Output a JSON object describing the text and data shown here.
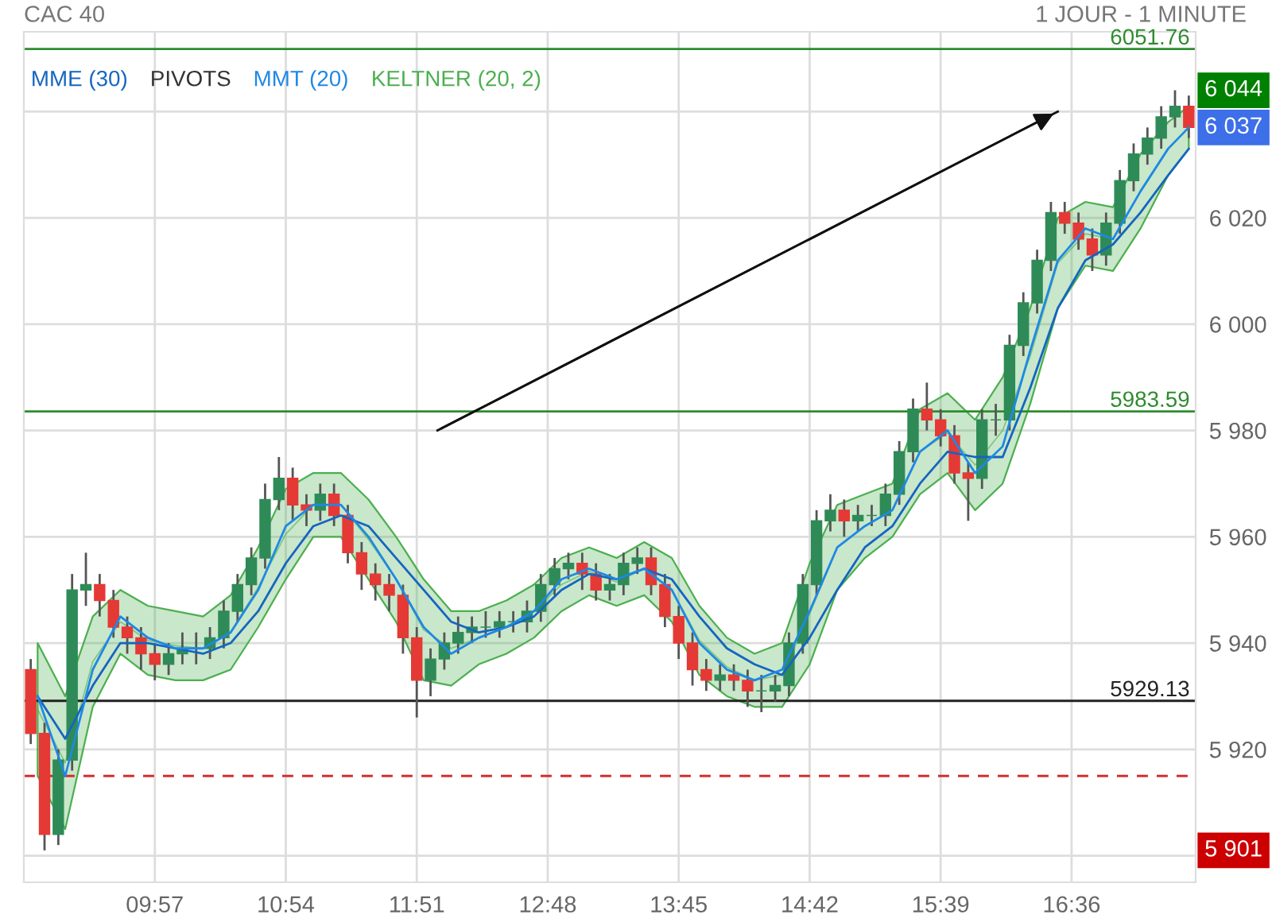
{
  "chart_data": {
    "type": "candlestick",
    "title": "CAC 40",
    "subtitle": "1 JOUR - 1 MINUTE",
    "x": [
      9.05,
      9.15,
      9.25,
      9.35,
      9.45,
      9.55,
      9.65,
      9.75,
      9.85,
      9.95,
      10.05,
      10.15,
      10.25,
      10.35,
      10.45,
      10.55,
      10.65,
      10.75,
      10.85,
      10.95,
      11.05,
      11.15,
      11.25,
      11.35,
      11.45,
      11.55,
      11.65,
      11.75,
      11.85,
      11.95,
      12.05,
      12.15,
      12.25,
      12.35,
      12.45,
      12.55,
      12.65,
      12.75,
      12.85,
      12.95,
      13.05,
      13.15,
      13.25,
      13.35,
      13.45,
      13.55,
      13.65,
      13.75,
      13.85,
      13.95,
      14.05,
      14.15,
      14.25,
      14.35,
      14.45,
      14.55,
      14.65,
      14.75,
      14.85,
      14.95,
      15.05,
      15.15,
      15.25,
      15.35,
      15.45,
      15.55,
      15.65,
      15.75,
      15.85,
      15.95,
      16.05,
      16.15,
      16.25,
      16.35,
      16.45,
      16.55,
      16.65,
      16.75,
      16.85,
      16.95,
      17.05,
      17.15,
      17.25,
      17.35,
      17.45
    ],
    "ohlc": [
      [
        5935,
        5937,
        5921,
        5923
      ],
      [
        5923,
        5925,
        5901,
        5904
      ],
      [
        5904,
        5920,
        5902,
        5918
      ],
      [
        5918,
        5953,
        5916,
        5950
      ],
      [
        5950,
        5957,
        5947,
        5951
      ],
      [
        5951,
        5953,
        5945,
        5948
      ],
      [
        5948,
        5950,
        5941,
        5943
      ],
      [
        5943,
        5945,
        5938,
        5941
      ],
      [
        5941,
        5943,
        5935,
        5938
      ],
      [
        5938,
        5940,
        5933,
        5936
      ],
      [
        5936,
        5940,
        5934,
        5938
      ],
      [
        5938,
        5942,
        5936,
        5939
      ],
      [
        5939,
        5942,
        5936,
        5939
      ],
      [
        5939,
        5943,
        5937,
        5941
      ],
      [
        5941,
        5948,
        5939,
        5946
      ],
      [
        5946,
        5953,
        5944,
        5951
      ],
      [
        5951,
        5958,
        5949,
        5956
      ],
      [
        5956,
        5970,
        5954,
        5967
      ],
      [
        5967,
        5975,
        5965,
        5971
      ],
      [
        5971,
        5973,
        5963,
        5966
      ],
      [
        5966,
        5968,
        5962,
        5965
      ],
      [
        5965,
        5970,
        5963,
        5968
      ],
      [
        5968,
        5970,
        5962,
        5964
      ],
      [
        5964,
        5966,
        5955,
        5957
      ],
      [
        5957,
        5959,
        5950,
        5953
      ],
      [
        5953,
        5955,
        5948,
        5951
      ],
      [
        5951,
        5953,
        5946,
        5949
      ],
      [
        5949,
        5951,
        5938,
        5941
      ],
      [
        5941,
        5943,
        5926,
        5933
      ],
      [
        5933,
        5939,
        5930,
        5937
      ],
      [
        5937,
        5942,
        5935,
        5940
      ],
      [
        5940,
        5945,
        5938,
        5942
      ],
      [
        5942,
        5945,
        5940,
        5943
      ],
      [
        5943,
        5946,
        5941,
        5943
      ],
      [
        5943,
        5946,
        5941,
        5944
      ],
      [
        5944,
        5946,
        5942,
        5944
      ],
      [
        5944,
        5948,
        5942,
        5946
      ],
      [
        5946,
        5953,
        5944,
        5951
      ],
      [
        5951,
        5956,
        5949,
        5954
      ],
      [
        5954,
        5957,
        5952,
        5955
      ],
      [
        5955,
        5957,
        5950,
        5953
      ],
      [
        5953,
        5955,
        5948,
        5950
      ],
      [
        5950,
        5953,
        5948,
        5951
      ],
      [
        5951,
        5957,
        5949,
        5955
      ],
      [
        5955,
        5958,
        5953,
        5956
      ],
      [
        5956,
        5958,
        5949,
        5951
      ],
      [
        5951,
        5953,
        5943,
        5945
      ],
      [
        5945,
        5947,
        5937,
        5940
      ],
      [
        5940,
        5942,
        5932,
        5935
      ],
      [
        5935,
        5937,
        5931,
        5933
      ],
      [
        5933,
        5936,
        5931,
        5934
      ],
      [
        5934,
        5936,
        5931,
        5933
      ],
      [
        5933,
        5935,
        5928,
        5931
      ],
      [
        5931,
        5934,
        5927,
        5931
      ],
      [
        5931,
        5934,
        5929,
        5932
      ],
      [
        5932,
        5942,
        5930,
        5940
      ],
      [
        5940,
        5953,
        5938,
        5951
      ],
      [
        5951,
        5965,
        5949,
        5963
      ],
      [
        5963,
        5968,
        5961,
        5965
      ],
      [
        5965,
        5967,
        5960,
        5963
      ],
      [
        5963,
        5966,
        5961,
        5964
      ],
      [
        5964,
        5966,
        5962,
        5964
      ],
      [
        5964,
        5970,
        5962,
        5968
      ],
      [
        5968,
        5978,
        5966,
        5976
      ],
      [
        5976,
        5986,
        5974,
        5984
      ],
      [
        5984,
        5989,
        5980,
        5982
      ],
      [
        5982,
        5984,
        5977,
        5979
      ],
      [
        5979,
        5981,
        5970,
        5972
      ],
      [
        5972,
        5974,
        5963,
        5971
      ],
      [
        5971,
        5984,
        5969,
        5982
      ],
      [
        5982,
        5985,
        5979,
        5982
      ],
      [
        5982,
        5998,
        5980,
        5996
      ],
      [
        5996,
        6006,
        5994,
        6004
      ],
      [
        6004,
        6014,
        6002,
        6012
      ],
      [
        6012,
        6023,
        6010,
        6021
      ],
      [
        6021,
        6023,
        6017,
        6019
      ],
      [
        6019,
        6021,
        6014,
        6016
      ],
      [
        6016,
        6018,
        6010,
        6013
      ],
      [
        6013,
        6021,
        6011,
        6019
      ],
      [
        6019,
        6029,
        6017,
        6027
      ],
      [
        6027,
        6034,
        6025,
        6032
      ],
      [
        6032,
        6037,
        6030,
        6035
      ],
      [
        6035,
        6041,
        6033,
        6039
      ],
      [
        6039,
        6044,
        6037,
        6041
      ],
      [
        6041,
        6043,
        6035,
        6037
      ]
    ],
    "series": [
      {
        "name": "MME (30)",
        "type": "line",
        "color": "#1565c0",
        "x": [
          9.1,
          9.3,
          9.5,
          9.7,
          9.9,
          10.1,
          10.3,
          10.5,
          10.7,
          10.9,
          11.1,
          11.3,
          11.5,
          11.7,
          11.9,
          12.1,
          12.3,
          12.5,
          12.7,
          12.9,
          13.1,
          13.3,
          13.5,
          13.7,
          13.9,
          14.1,
          14.3,
          14.5,
          14.7,
          14.9,
          15.1,
          15.3,
          15.5,
          15.7,
          15.9,
          16.1,
          16.3,
          16.5,
          16.7,
          16.9,
          17.1,
          17.3,
          17.45
        ],
        "values": [
          5930,
          5922,
          5932,
          5940,
          5940,
          5939,
          5938,
          5940,
          5946,
          5955,
          5962,
          5964,
          5962,
          5956,
          5950,
          5944,
          5942,
          5943,
          5945,
          5950,
          5953,
          5952,
          5954,
          5952,
          5945,
          5939,
          5936,
          5934,
          5941,
          5950,
          5958,
          5962,
          5970,
          5976,
          5975,
          5975,
          5988,
          6003,
          6012,
          6015,
          6021,
          6028,
          6033
        ]
      },
      {
        "name": "MMT (20)",
        "type": "line",
        "color": "#1e88e5",
        "x": [
          9.1,
          9.3,
          9.5,
          9.7,
          9.9,
          10.1,
          10.3,
          10.5,
          10.7,
          10.9,
          11.1,
          11.3,
          11.5,
          11.7,
          11.9,
          12.1,
          12.3,
          12.5,
          12.7,
          12.9,
          13.1,
          13.3,
          13.5,
          13.7,
          13.9,
          14.1,
          14.3,
          14.5,
          14.7,
          14.9,
          15.1,
          15.3,
          15.5,
          15.7,
          15.9,
          16.1,
          16.3,
          16.5,
          16.7,
          16.9,
          17.1,
          17.3,
          17.45
        ],
        "values": [
          5930,
          5915,
          5935,
          5945,
          5941,
          5939,
          5939,
          5942,
          5950,
          5962,
          5966,
          5966,
          5960,
          5952,
          5943,
          5938,
          5941,
          5943,
          5946,
          5952,
          5954,
          5952,
          5954,
          5950,
          5940,
          5935,
          5933,
          5935,
          5946,
          5958,
          5962,
          5965,
          5976,
          5980,
          5972,
          5977,
          5995,
          6012,
          6018,
          6016,
          6025,
          6033,
          6037
        ]
      },
      {
        "name": "KELTNER (20, 2)",
        "type": "line",
        "color": "#4caf50",
        "x": [
          9.1,
          9.3,
          9.5,
          9.7,
          9.9,
          10.1,
          10.3,
          10.5,
          10.7,
          10.9,
          11.1,
          11.3,
          11.5,
          11.7,
          11.9,
          12.1,
          12.3,
          12.5,
          12.7,
          12.9,
          13.1,
          13.3,
          13.5,
          13.7,
          13.9,
          14.1,
          14.3,
          14.5,
          14.7,
          14.9,
          15.1,
          15.3,
          15.5,
          15.7,
          15.9,
          16.1,
          16.3,
          16.5,
          16.7,
          16.9,
          17.1,
          17.3,
          17.45
        ],
        "values": [
          5927.5,
          5917.5,
          5936.5,
          5944,
          5940.5,
          5939.5,
          5939,
          5942,
          5950.5,
          5960.5,
          5966,
          5966,
          5959.5,
          5952,
          5942.5,
          5939,
          5941,
          5943,
          5946,
          5951,
          5953.5,
          5951.5,
          5954,
          5950,
          5940.5,
          5935.5,
          5933,
          5934,
          5945.5,
          5958,
          5962,
          5965,
          5976,
          5979.5,
          5973.5,
          5980,
          5994,
          6011.5,
          6017,
          6016,
          6025,
          6033,
          6037
        ],
        "lower": [
          5915,
          5905,
          5928,
          5938,
          5934,
          5933,
          5933,
          5935,
          5943,
          5952,
          5960,
          5960,
          5952,
          5944,
          5933,
          5932,
          5936,
          5938,
          5941,
          5946,
          5949,
          5947,
          5949,
          5944,
          5934,
          5930,
          5928,
          5928,
          5936,
          5950,
          5956,
          5960,
          5968,
          5972,
          5965,
          5970,
          5985,
          6003,
          6011,
          6010,
          6018,
          6028,
          6033
        ],
        "upper": [
          5940,
          5930,
          5945,
          5950,
          5947,
          5946,
          5945,
          5949,
          5958,
          5969,
          5972,
          5972,
          5967,
          5960,
          5952,
          5946,
          5946,
          5948,
          5951,
          5956,
          5958,
          5956,
          5959,
          5956,
          5947,
          5941,
          5938,
          5940,
          5955,
          5966,
          5968,
          5970,
          5984,
          5987,
          5982,
          5990,
          6003,
          6020,
          6023,
          6022,
          6032,
          6038,
          6041
        ]
      },
      {
        "type": "line",
        "color": "#111111",
        "x": [
          12.0,
          16.5
        ],
        "values": [
          5980,
          6040
        ]
      }
    ],
    "ref_lines": [
      {
        "axis": "y",
        "value": 6051.76,
        "label": "6051.76",
        "color": "#2e8b2e"
      },
      {
        "axis": "y",
        "value": 5983.59,
        "label": "5983.59",
        "color": "#2e8b2e"
      },
      {
        "axis": "y",
        "value": 5929.13,
        "label": "5929.13",
        "color": "#222222"
      },
      {
        "axis": "y",
        "value": 5915,
        "color": "#d32f2f",
        "line_style": "dashed"
      }
    ],
    "annotations": [
      "PIVOTS",
      "6 044",
      "6 037",
      "5 901"
    ],
    "xlim": [
      9.0,
      17.5
    ],
    "xticks": [
      {
        "value": 9.95,
        "label": "09:57"
      },
      {
        "value": 10.9,
        "label": "10:54"
      },
      {
        "value": 11.85,
        "label": "11:51"
      },
      {
        "value": 12.8,
        "label": "12:48"
      },
      {
        "value": 13.75,
        "label": "13:45"
      },
      {
        "value": 14.7,
        "label": "14:42"
      },
      {
        "value": 15.65,
        "label": "15:39"
      },
      {
        "value": 16.6,
        "label": "16:36"
      }
    ],
    "ylim": [
      5895,
      6055
    ],
    "yticks": [
      {
        "value": 5900,
        "label": null
      },
      {
        "value": 5920,
        "label": "5 920"
      },
      {
        "value": 5940,
        "label": "5 940"
      },
      {
        "value": 5960,
        "label": "5 960"
      },
      {
        "value": 5980,
        "label": "5 980"
      },
      {
        "value": 6000,
        "label": "6 000"
      },
      {
        "value": 6020,
        "label": "6 020"
      },
      {
        "value": 6040,
        "label": null
      }
    ],
    "grid": true,
    "legend": "top left"
  }
}
